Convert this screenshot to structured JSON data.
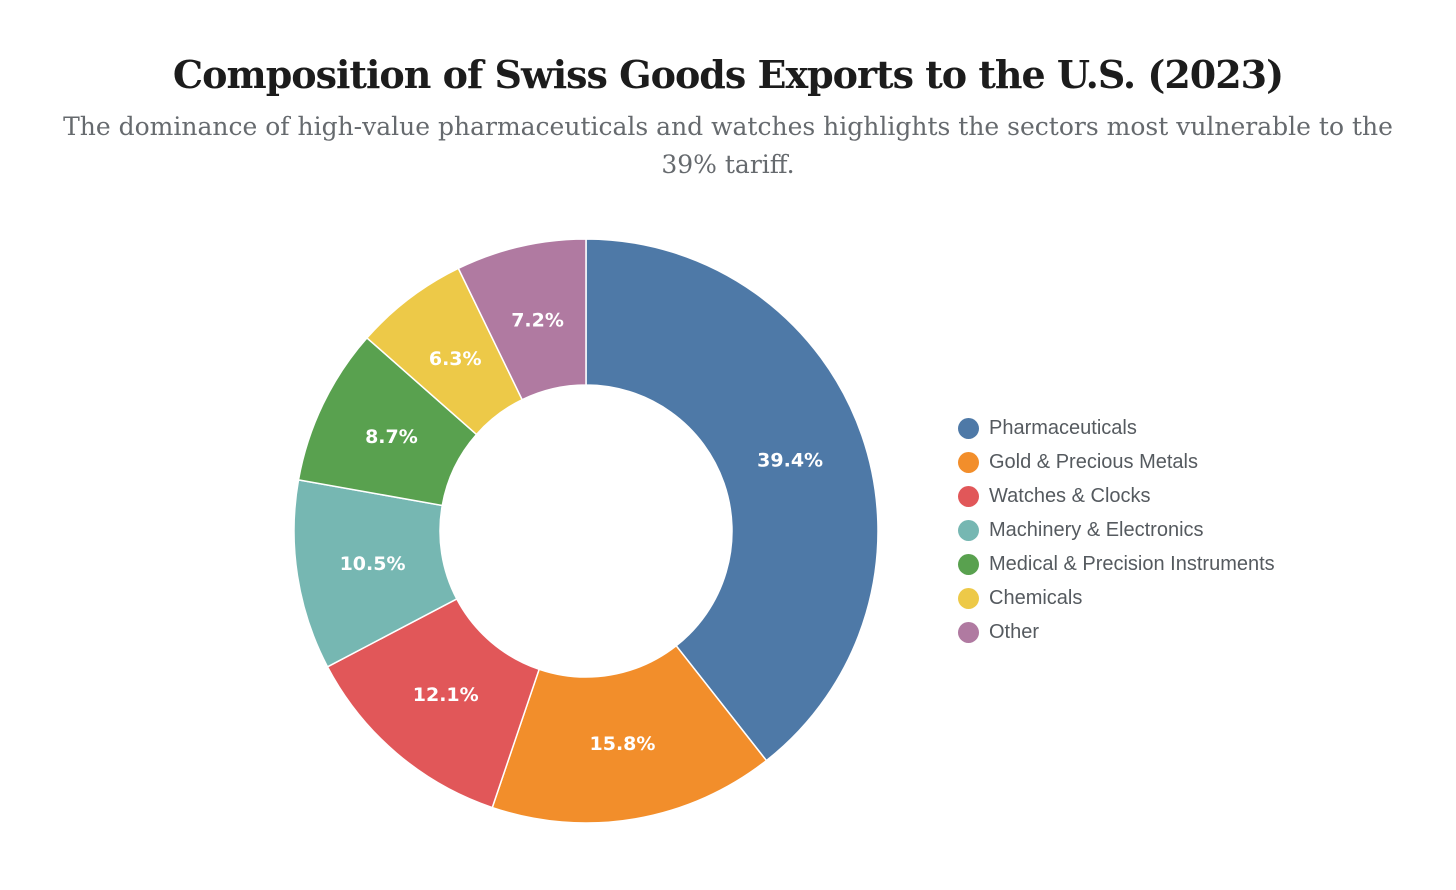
{
  "chart_data": {
    "type": "pie",
    "variant": "donut",
    "title": "Composition of Swiss Goods Exports to the U.S. (2023)",
    "subtitle": "The dominance of high-value pharmaceuticals and watches highlights the sectors most vulnerable to the 39% tariff.",
    "categories": [
      "Pharmaceuticals",
      "Gold & Precious Metals",
      "Watches & Clocks",
      "Machinery & Electronics",
      "Medical & Precision Instruments",
      "Chemicals",
      "Other"
    ],
    "values": [
      39.4,
      15.8,
      12.1,
      10.5,
      8.7,
      6.3,
      7.2
    ],
    "data_labels": [
      "39.4%",
      "15.8%",
      "12.1%",
      "10.5%",
      "8.7%",
      "6.3%",
      "7.2%"
    ],
    "colors": [
      "#4e79a7",
      "#f28e2b",
      "#e15759",
      "#76b7b2",
      "#59a14f",
      "#edc948",
      "#b07aa1"
    ],
    "legend_position": "right",
    "start_angle": "top",
    "direction": "clockwise"
  }
}
